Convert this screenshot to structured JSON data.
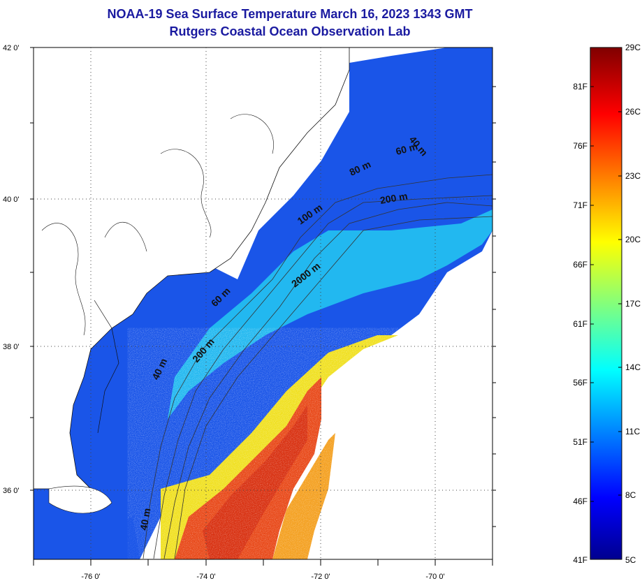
{
  "header": {
    "title": "NOAA-19 Sea Surface Temperature March 16, 2023 1343 GMT",
    "subtitle": "Rutgers Coastal Ocean Observation Lab"
  },
  "map": {
    "lat_labels": [
      "42 0'",
      "40 0'",
      "38 0'",
      "36 0'"
    ],
    "lon_labels": [
      "-76 0'",
      "-74 0'",
      "-72 0'",
      "-70 0'"
    ],
    "lon_range": [
      -77,
      -69
    ],
    "lat_range": [
      35,
      42
    ],
    "isobath_labels": [
      "40 m",
      "60 m",
      "80 m",
      "200 m",
      "100 m",
      "2000 m",
      "60 m",
      "200 m",
      "40 m",
      "40 m"
    ],
    "colors": {
      "land": "#ffffff",
      "coast_water": "#1020c8",
      "shelf": "#1a55e8",
      "slope": "#22b8f0",
      "warm_front": "#f0e020",
      "gulf_stream": "#e84818",
      "gulf_core": "#d83010"
    }
  },
  "colorbar": {
    "top_label": "29C",
    "bottom_label": "5C",
    "celsius_labels": [
      "26C",
      "23C",
      "20C",
      "17C",
      "14C",
      "11C",
      "8C"
    ],
    "fahrenheit_labels": [
      "81F",
      "76F",
      "71F",
      "66F",
      "61F",
      "56F",
      "51F",
      "46F",
      "41F"
    ],
    "celsius_range": [
      5,
      29
    ]
  }
}
